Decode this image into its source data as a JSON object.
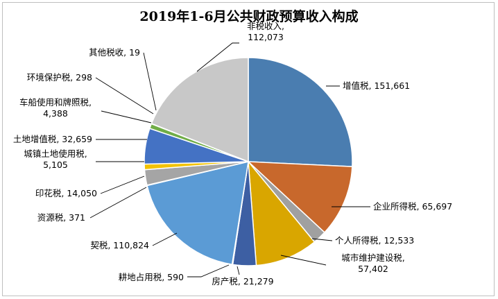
{
  "chart_data": {
    "type": "pie",
    "title": "2019年1-6月公共财政预算收入构成",
    "slices": [
      {
        "name": "增值税",
        "value": 151661,
        "value_label": "151,661",
        "color": "#4a7db0"
      },
      {
        "name": "企业所得税",
        "value": 65697,
        "value_label": "65,697",
        "color": "#c8682c"
      },
      {
        "name": "个人所得税",
        "value": 12533,
        "value_label": "12,533",
        "color": "#a0a0a0"
      },
      {
        "name": "城市维护建设税",
        "value": 57402,
        "value_label": "57,402",
        "color": "#d9a600"
      },
      {
        "name": "房产税",
        "value": 21279,
        "value_label": "21,279",
        "color": "#3d5fa3"
      },
      {
        "name": "耕地占用税",
        "value": 590,
        "value_label": "590",
        "color": "#5b8a3a"
      },
      {
        "name": "契税",
        "value": 110824,
        "value_label": "110,824",
        "color": "#5b9bd5"
      },
      {
        "name": "资源税",
        "value": 371,
        "value_label": "371",
        "color": "#26467a"
      },
      {
        "name": "印花税",
        "value": 14050,
        "value_label": "14,050",
        "color": "#a5a5a5"
      },
      {
        "name": "城镇土地使用税",
        "value": 5105,
        "value_label": "5,105",
        "color": "#f2c200"
      },
      {
        "name": "土地增值税",
        "value": 32659,
        "value_label": "32,659",
        "color": "#4472c4"
      },
      {
        "name": "车船使用和牌照税",
        "value": 4388,
        "value_label": "4,388",
        "color": "#70ad47"
      },
      {
        "name": "环境保护税",
        "value": 298,
        "value_label": "298",
        "color": "#7a5230"
      },
      {
        "name": "其他税收",
        "value": 19,
        "value_label": "19",
        "color": "#7f7f7f"
      },
      {
        "name": "非税收入",
        "value": 112073,
        "value_label": "112,073",
        "color": "#c8c8c8"
      }
    ],
    "legend": "none"
  }
}
